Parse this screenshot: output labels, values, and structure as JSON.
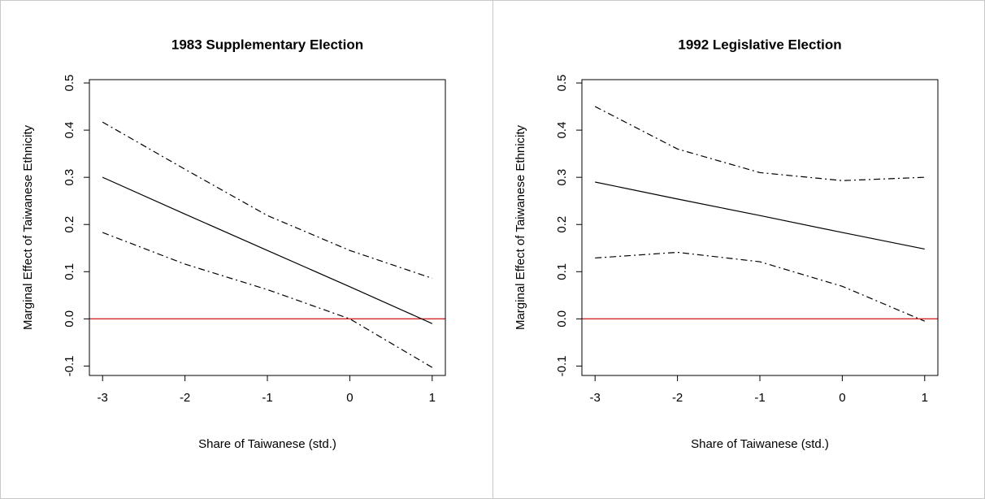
{
  "chart_data": [
    {
      "type": "line",
      "title": "1983 Supplementary Election",
      "xlabel": "Share of Taiwanese (std.)",
      "ylabel": "Marginal Effect of Taiwanese Ethnicity",
      "x": [
        -3,
        -2,
        -1,
        0,
        1
      ],
      "series": [
        {
          "color": "#000000",
          "dash": "solid",
          "values": [
            0.3,
            0.222,
            0.145,
            0.068,
            -0.01
          ]
        },
        {
          "color": "#000000",
          "dash": "dashdot",
          "values": [
            0.417,
            0.317,
            0.219,
            0.145,
            0.086
          ]
        },
        {
          "color": "#000000",
          "dash": "dashdot",
          "values": [
            0.183,
            0.116,
            0.062,
            0.0,
            -0.103
          ]
        }
      ],
      "hline": 0,
      "hline_color": "#d62728",
      "xlim": [
        -3.16,
        1.16
      ],
      "ylim": [
        -0.12,
        0.507
      ],
      "xticks": [
        -3,
        -2,
        -1,
        0,
        1
      ],
      "yticks": [
        -0.1,
        {
          "value": 0,
          "label": "0.0"
        },
        0.1,
        0.2,
        0.3,
        0.4,
        0.5
      ]
    },
    {
      "type": "line",
      "title": "1992 Legislative Election",
      "xlabel": "Share of Taiwanese (std.)",
      "ylabel": "Marginal Effect of Taiwanese Ethnicity",
      "x": [
        -3,
        -2,
        -1,
        0,
        1
      ],
      "series": [
        {
          "color": "#000000",
          "dash": "solid",
          "values": [
            0.29,
            0.254,
            0.219,
            0.183,
            0.148
          ]
        },
        {
          "color": "#000000",
          "dash": "dashdot",
          "values": [
            0.45,
            0.36,
            0.31,
            0.293,
            0.3
          ]
        },
        {
          "color": "#000000",
          "dash": "dashdot",
          "values": [
            0.129,
            0.141,
            0.121,
            0.069,
            -0.005
          ]
        }
      ],
      "hline": 0,
      "hline_color": "#d62728",
      "xlim": [
        -3.16,
        1.16
      ],
      "ylim": [
        -0.12,
        0.507
      ],
      "xticks": [
        -3,
        -2,
        -1,
        0,
        1
      ],
      "yticks": [
        -0.1,
        {
          "value": 0,
          "label": "0.0"
        },
        0.1,
        0.2,
        0.3,
        0.4,
        0.5
      ]
    }
  ]
}
